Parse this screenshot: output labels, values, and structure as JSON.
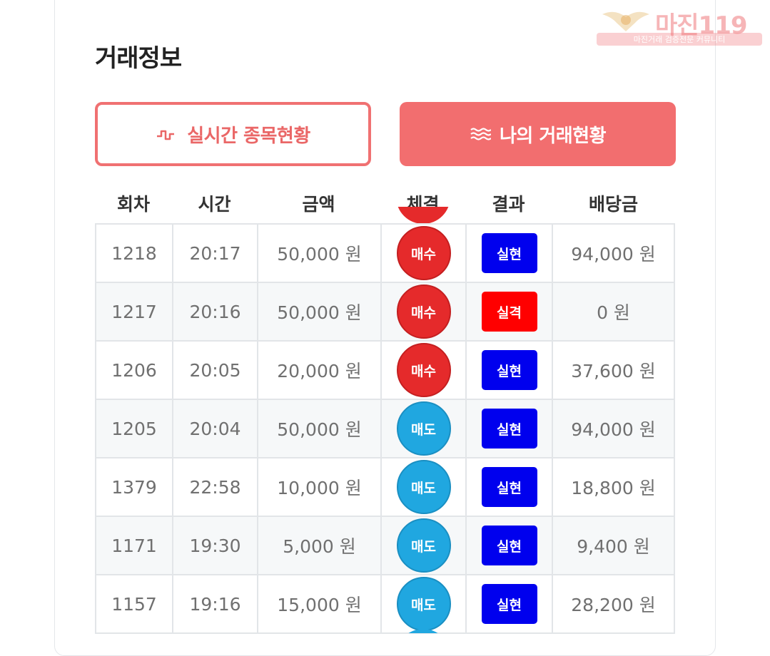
{
  "page": {
    "title": "거래정보"
  },
  "buttons": {
    "realtime": "실시간 종목현황",
    "my_trades": "나의 거래현황"
  },
  "table": {
    "headers": [
      "회차",
      "시간",
      "금액",
      "체결",
      "결과",
      "배당금"
    ],
    "rows": [
      {
        "round": "1218",
        "time": "20:17",
        "amount": "50,000 원",
        "trade": "매수",
        "result": "실현",
        "payout": "94,000 원"
      },
      {
        "round": "1217",
        "time": "20:16",
        "amount": "50,000 원",
        "trade": "매수",
        "result": "실격",
        "payout": "0 원"
      },
      {
        "round": "1206",
        "time": "20:05",
        "amount": "20,000 원",
        "trade": "매수",
        "result": "실현",
        "payout": "37,600 원"
      },
      {
        "round": "1205",
        "time": "20:04",
        "amount": "50,000 원",
        "trade": "매도",
        "result": "실현",
        "payout": "94,000 원"
      },
      {
        "round": "1379",
        "time": "22:58",
        "amount": "10,000 원",
        "trade": "매도",
        "result": "실현",
        "payout": "18,800 원"
      },
      {
        "round": "1171",
        "time": "19:30",
        "amount": "5,000 원",
        "trade": "매도",
        "result": "실현",
        "payout": "9,400 원"
      },
      {
        "round": "1157",
        "time": "19:16",
        "amount": "15,000 원",
        "trade": "매도",
        "result": "실현",
        "payout": "28,200 원"
      }
    ]
  },
  "watermark": {
    "main": "마진119",
    "sub": "마진거래 검증전문 커뮤니티"
  },
  "colors": {
    "accent": "#f26e6f",
    "buy": "#e52a2b",
    "sell": "#20a7e0",
    "hit": "#0000ee",
    "miss": "#ff0000"
  },
  "icons": {
    "realtime": "pulse-icon",
    "my_trades": "waves-icon"
  }
}
